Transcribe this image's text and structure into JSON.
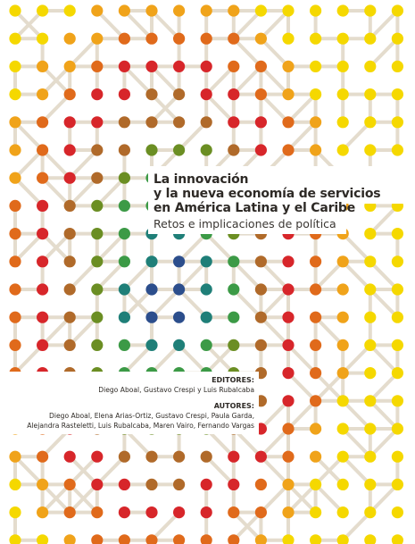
{
  "cover": {
    "title_lines": [
      "La innovación",
      "y la nueva economía de servicios",
      "en América Latina y el Caribe"
    ],
    "subtitle": "Retos e implicaciones de política",
    "editors_label": "EDITORES:",
    "editors": "Diego Aboal, Gustavo Crespi y Luis Rubalcaba",
    "authors_label": "AUTORES:",
    "authors_lines": [
      "Diego Aboal, Elena Arias-Ortiz, Gustavo Crespi, Paula Garda,",
      "Alejandra Rasteletti, Luis Rubalcaba, Maren Vairo, Fernando Vargas"
    ]
  },
  "palette": {
    "yellow": "#f5d800",
    "orange": "#f0a31a",
    "dark_orange": "#e06a1b",
    "red": "#d7262a",
    "brown": "#b06a2a",
    "olive": "#6b8e23",
    "green": "#3c9a46",
    "teal": "#1f7f78",
    "blue": "#2c4e8c",
    "link": "#e4dccd"
  }
}
